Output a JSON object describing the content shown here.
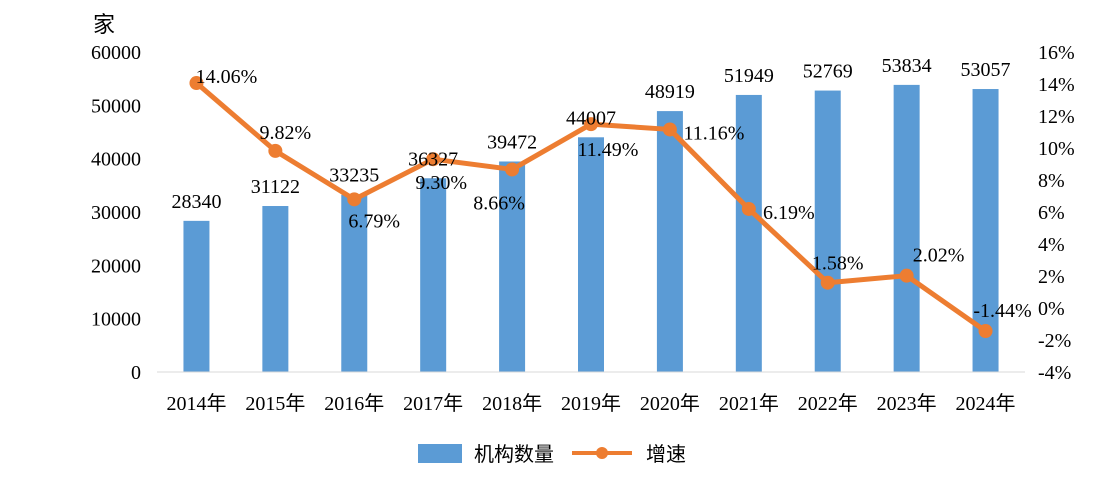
{
  "chart_data": {
    "type": "bar",
    "ylabel": "家",
    "categories": [
      "2014年",
      "2015年",
      "2016年",
      "2017年",
      "2018年",
      "2019年",
      "2020年",
      "2021年",
      "2022年",
      "2023年",
      "2024年"
    ],
    "series": [
      {
        "name": "机构数量",
        "type": "bar",
        "axis": "left",
        "color": "#5B9BD5",
        "values": [
          28340,
          31122,
          33235,
          36327,
          39472,
          44007,
          48919,
          51949,
          52769,
          53834,
          53057
        ],
        "labels": [
          "28340",
          "31122",
          "33235",
          "36327",
          "39472",
          "44007",
          "48919",
          "51949",
          "52769",
          "53834",
          "53057"
        ]
      },
      {
        "name": "增速",
        "type": "line",
        "axis": "right",
        "color": "#ED7D31",
        "values": [
          14.06,
          9.82,
          6.79,
          9.3,
          8.66,
          11.49,
          11.16,
          6.19,
          1.58,
          2.02,
          -1.44
        ],
        "labels": [
          "14.06%",
          "9.82%",
          "6.79%",
          "9.30%",
          "8.66%",
          "11.49%",
          "11.16%",
          "6.19%",
          "1.58%",
          "2.02%",
          "-1.44%"
        ]
      }
    ],
    "ylim": [
      0,
      60000
    ],
    "yticks": [
      "0",
      "10000",
      "20000",
      "30000",
      "40000",
      "50000",
      "60000"
    ],
    "y2lim": [
      -4,
      16
    ],
    "y2ticks": [
      "-4%",
      "-2%",
      "0%",
      "2%",
      "4%",
      "6%",
      "8%",
      "10%",
      "12%",
      "14%",
      "16%"
    ],
    "grid": false,
    "legend": "bottom"
  }
}
